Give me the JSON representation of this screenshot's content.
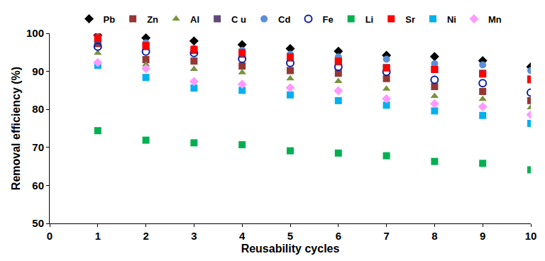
{
  "chart_data": {
    "type": "scatter",
    "x_label": "Reusability cycles",
    "y_label": "Removal efficiency (%)",
    "x": [
      1,
      2,
      3,
      4,
      5,
      6,
      7,
      8,
      9,
      10
    ],
    "xlim": [
      0,
      10
    ],
    "xticks": [
      0,
      1,
      2,
      3,
      4,
      5,
      6,
      7,
      8,
      9,
      10
    ],
    "ylim": [
      50,
      100
    ],
    "yticks": [
      50,
      60,
      70,
      80,
      90,
      100
    ],
    "grid": false,
    "legend": "top",
    "series": [
      {
        "name": "Pb",
        "color": "#000000",
        "marker": "diamond",
        "values": [
          99.5,
          98.8,
          98.0,
          97.0,
          96.0,
          95.3,
          94.2,
          93.9,
          92.8,
          91.2
        ]
      },
      {
        "name": "Zn",
        "color": "#953735",
        "marker": "square",
        "values": [
          97.3,
          93.1,
          92.7,
          91.4,
          90.2,
          89.5,
          88.1,
          86.0,
          84.7,
          82.3
        ]
      },
      {
        "name": "Al",
        "color": "#77933c",
        "marker": "triangle-up",
        "values": [
          94.8,
          91.8,
          90.6,
          89.7,
          88.1,
          87.4,
          85.4,
          83.5,
          82.7,
          80.5
        ]
      },
      {
        "name": "C u",
        "color": "#604a7b",
        "marker": "square",
        "values": [
          98.0,
          96.5,
          95.5,
          94.5,
          93.5,
          92.5,
          91.0,
          90.5,
          89.5,
          88.0
        ]
      },
      {
        "name": "Cd",
        "color": "#5b8fd6",
        "marker": "circle",
        "values": [
          99.0,
          97.5,
          96.0,
          95.5,
          94.5,
          93.8,
          93.2,
          92.0,
          91.7,
          90.2
        ]
      },
      {
        "name": "Fe",
        "color": "#0a1f9e",
        "marker": "circle-open",
        "values": [
          96.5,
          95.2,
          94.8,
          93.3,
          92.2,
          91.2,
          89.9,
          87.8,
          86.9,
          84.4
        ]
      },
      {
        "name": "Li",
        "color": "#00b050",
        "marker": "square",
        "values": [
          74.4,
          71.9,
          71.2,
          70.7,
          69.1,
          68.5,
          67.8,
          66.3,
          65.8,
          64.1
        ]
      },
      {
        "name": "Sr",
        "color": "#ff0000",
        "marker": "square",
        "values": [
          98.8,
          96.8,
          95.8,
          94.9,
          93.8,
          92.7,
          90.9,
          90.5,
          89.3,
          87.8
        ]
      },
      {
        "name": "Ni",
        "color": "#00b0f0",
        "marker": "square",
        "values": [
          91.6,
          88.4,
          85.6,
          85.0,
          83.8,
          82.3,
          81.1,
          79.6,
          78.4,
          76.3
        ]
      },
      {
        "name": "Mn",
        "color": "#ff99ff",
        "marker": "diamond",
        "values": [
          92.3,
          90.7,
          87.3,
          86.6,
          85.7,
          84.9,
          82.8,
          81.5,
          80.7,
          78.6
        ]
      }
    ]
  }
}
